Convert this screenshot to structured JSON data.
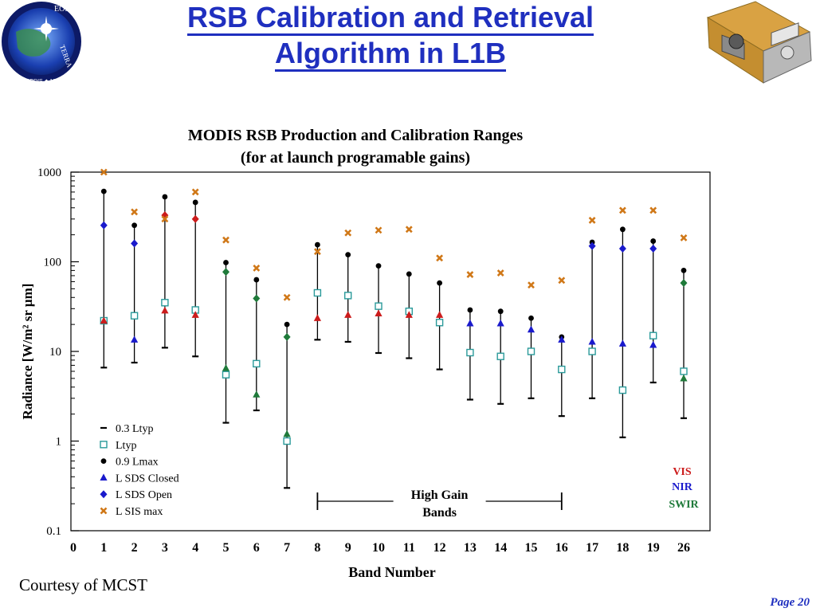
{
  "slide": {
    "title_line1": "RSB Calibration and Retrieval",
    "title_line2": "Algorithm in L1B",
    "courtesy": "Courtesy of MCST",
    "page": "Page 20",
    "logo_text": {
      "top": "EOS",
      "right": "TERRA",
      "bottom": "MISR ◆ MODIS ◆ MOPITT"
    }
  },
  "chart_data": {
    "type": "scatter",
    "title": "MODIS RSB Production and Calibration Ranges",
    "subtitle": "(for at launch programable gains)",
    "xlabel": "Band Number",
    "ylabel": "Radiance [W/m² sr µm]",
    "yscale": "log",
    "ylim": [
      0.1,
      1000
    ],
    "y_ticks": [
      "0.1",
      "1",
      "10",
      "100",
      "1000"
    ],
    "x_ticks": [
      "0",
      "1",
      "2",
      "3",
      "4",
      "5",
      "6",
      "7",
      "8",
      "9",
      "10",
      "11",
      "12",
      "13",
      "14",
      "15",
      "16",
      "17",
      "18",
      "19",
      "26"
    ],
    "bands": [
      "1",
      "2",
      "3",
      "4",
      "5",
      "6",
      "7",
      "8",
      "9",
      "10",
      "11",
      "12",
      "13",
      "14",
      "15",
      "16",
      "17",
      "18",
      "19",
      "26"
    ],
    "legend_placement": "bottom-left",
    "series": [
      {
        "name": "0.3 Ltyp",
        "marker": "dash",
        "color": "#000000",
        "values": [
          6.6,
          7.5,
          11,
          8.8,
          1.6,
          2.2,
          0.3,
          13.5,
          12.8,
          9.6,
          8.4,
          6.3,
          2.9,
          2.6,
          3.0,
          1.9,
          3.0,
          1.1,
          4.5,
          1.8
        ]
      },
      {
        "name": "Ltyp",
        "marker": "square",
        "color": "#2a9a9a",
        "values": [
          22,
          25,
          35,
          29,
          5.5,
          7.3,
          1.0,
          45,
          42,
          32,
          28,
          21,
          9.7,
          8.8,
          10,
          6.3,
          10,
          3.7,
          15,
          6.0
        ]
      },
      {
        "name": "0.9 Lmax",
        "marker": "dot",
        "color": "#000000",
        "values": [
          610,
          255,
          530,
          460,
          98,
          63,
          20,
          155,
          120,
          90,
          73,
          58,
          29,
          28,
          23.5,
          14.5,
          165,
          230,
          170,
          80
        ]
      },
      {
        "name": "L SDS Closed",
        "marker": "triangle",
        "colors": [
          "#cc1c1c",
          "#1a1acc",
          "#cc1c1c",
          "#cc1c1c",
          "#1f7a3a",
          "#1f7a3a",
          "#1f7a3a",
          "#cc1c1c",
          "#cc1c1c",
          "#cc1c1c",
          "#cc1c1c",
          "#cc1c1c",
          "#1a1acc",
          "#1a1acc",
          "#1a1acc",
          "#1a1acc",
          "#1a1acc",
          "#1a1acc",
          "#1a1acc",
          "#1f7a3a"
        ],
        "values": [
          22,
          13.5,
          28.5,
          25.5,
          6.5,
          3.3,
          1.2,
          23.5,
          25.5,
          26.5,
          25.5,
          25.5,
          20.5,
          20.5,
          17.5,
          13.5,
          12.8,
          12.2,
          11.8,
          5.0
        ]
      },
      {
        "name": "L SDS Open",
        "marker": "diamond",
        "colors": [
          "#1a1acc",
          "#1a1acc",
          "#cc1c1c",
          "#cc1c1c",
          "#1f7a3a",
          "#1f7a3a",
          "#1f7a3a",
          null,
          null,
          null,
          null,
          null,
          null,
          null,
          null,
          null,
          "#1a1acc",
          "#1a1acc",
          "#1a1acc",
          "#1f7a3a"
        ],
        "values": [
          255,
          160,
          330,
          300,
          77,
          39,
          14.5,
          null,
          null,
          null,
          null,
          null,
          null,
          null,
          null,
          null,
          150,
          140,
          140,
          58
        ]
      },
      {
        "name": "L SIS max",
        "marker": "x",
        "color": "#d07818",
        "values": [
          1000,
          360,
          300,
          600,
          175,
          85,
          40,
          130,
          210,
          225,
          230,
          110,
          72,
          75,
          55,
          62,
          290,
          375,
          375,
          185
        ]
      }
    ],
    "annotations": {
      "high_gain_bands": {
        "text_line1": "High Gain",
        "text_line2": "Bands",
        "from_band": "8",
        "to_band": "16"
      },
      "spectral_key": [
        {
          "label": "VIS",
          "color": "#cc1c1c"
        },
        {
          "label": "NIR",
          "color": "#1a1acc"
        },
        {
          "label": "SWIR",
          "color": "#1f7a3a"
        }
      ]
    }
  }
}
